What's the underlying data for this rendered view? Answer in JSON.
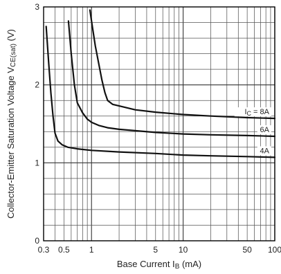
{
  "chart_data": {
    "type": "line",
    "xscale": "log",
    "xlim": [
      0.3,
      100
    ],
    "ylim": [
      0,
      3
    ],
    "grid": true,
    "xlabel": {
      "main": "Base Current  I",
      "sub": "B",
      "unit": " (mA)"
    },
    "ylabel": {
      "main": "Collector-Emitter Saturation Voltage  V",
      "sub": "CE(sat)",
      "unit": " (V)"
    },
    "x_tick_labels": [
      {
        "value": 0.3,
        "label": "0.3"
      },
      {
        "value": 0.5,
        "label": "0.5"
      },
      {
        "value": 1,
        "label": "1"
      },
      {
        "value": 5,
        "label": "5"
      },
      {
        "value": 10,
        "label": "10"
      },
      {
        "value": 50,
        "label": "50"
      },
      {
        "value": 100,
        "label": "100"
      }
    ],
    "y_tick_labels": [
      {
        "value": 0,
        "label": "0"
      },
      {
        "value": 1,
        "label": "1"
      },
      {
        "value": 2,
        "label": "2"
      },
      {
        "value": 3,
        "label": "3"
      }
    ],
    "series": [
      {
        "name": "8A",
        "label": {
          "prefix": "I",
          "sub": "C",
          "suffix": " = 8A"
        },
        "x": [
          0.96,
          1.02,
          1.1,
          1.2,
          1.3,
          1.4,
          1.5,
          1.7,
          2,
          3,
          5,
          10,
          20,
          50,
          100
        ],
        "y": [
          2.96,
          2.75,
          2.5,
          2.27,
          2.06,
          1.9,
          1.8,
          1.75,
          1.73,
          1.68,
          1.65,
          1.62,
          1.6,
          1.58,
          1.57
        ]
      },
      {
        "name": "6A",
        "label": {
          "prefix": "",
          "sub": "",
          "suffix": "6A"
        },
        "x": [
          0.56,
          0.6,
          0.65,
          0.7,
          0.8,
          0.9,
          1,
          1.2,
          1.5,
          2,
          5,
          10,
          20,
          50,
          100
        ],
        "y": [
          2.82,
          2.4,
          2.0,
          1.77,
          1.64,
          1.56,
          1.52,
          1.48,
          1.45,
          1.43,
          1.39,
          1.37,
          1.36,
          1.35,
          1.34
        ]
      },
      {
        "name": "4A",
        "label": {
          "prefix": "",
          "sub": "",
          "suffix": "4A"
        },
        "x": [
          0.32,
          0.34,
          0.36,
          0.38,
          0.4,
          0.43,
          0.48,
          0.55,
          0.7,
          1,
          2,
          5,
          10,
          20,
          50,
          100
        ],
        "y": [
          2.75,
          2.3,
          1.9,
          1.6,
          1.38,
          1.28,
          1.23,
          1.2,
          1.18,
          1.16,
          1.14,
          1.12,
          1.1,
          1.09,
          1.08,
          1.07
        ]
      }
    ]
  }
}
